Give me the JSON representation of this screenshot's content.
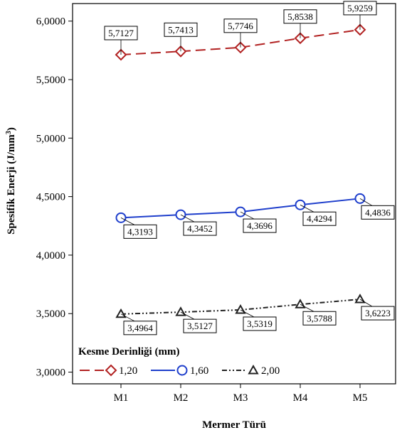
{
  "chart_data": {
    "type": "line",
    "xlabel": "Mermer Türü",
    "ylabel_main": "Spesifik Enerji (J/mm",
    "ylabel_sup": "3",
    "ylabel_close": ")",
    "categories": [
      "M1",
      "M2",
      "M3",
      "M4",
      "M5"
    ],
    "ylim": [
      2.9,
      6.15
    ],
    "yticks": [
      3.0,
      3.5,
      4.0,
      4.5,
      5.0,
      5.5,
      6.0
    ],
    "ytick_labels": [
      "3,0000",
      "3,5000",
      "4,0000",
      "4,5000",
      "5,0000",
      "5,5000",
      "6,0000"
    ],
    "legend_title": "Kesme Derinliği (mm)",
    "legend_position": "bottom-left",
    "grid": false,
    "series": [
      {
        "name": "1,20",
        "color": "#b22222",
        "marker": "diamond",
        "line_style": "dashed",
        "values": [
          5.7127,
          5.7413,
          5.7746,
          5.8538,
          5.9259
        ],
        "labels": [
          "5,7127",
          "5,7413",
          "5,7746",
          "5,8538",
          "5,9259"
        ],
        "label_position": "above"
      },
      {
        "name": "1,60",
        "color": "#1f3fcc",
        "marker": "circle",
        "line_style": "solid",
        "values": [
          4.3193,
          4.3452,
          4.3696,
          4.4294,
          4.4836
        ],
        "labels": [
          "4,3193",
          "4,3452",
          "4,3696",
          "4,4294",
          "4,4836"
        ],
        "label_position": "below"
      },
      {
        "name": "2,00",
        "color": "#222222",
        "marker": "triangle",
        "line_style": "dash-dot",
        "values": [
          3.4964,
          3.5127,
          3.5319,
          3.5788,
          3.6223
        ],
        "labels": [
          "3,4964",
          "3,5127",
          "3,5319",
          "3,5788",
          "3,6223"
        ],
        "label_position": "below"
      }
    ]
  }
}
